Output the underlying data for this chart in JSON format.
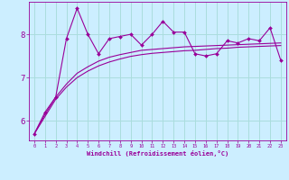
{
  "background_color": "#cceeff",
  "grid_color": "#aadddd",
  "line_color": "#990099",
  "marker_color": "#990099",
  "xlabel": "Windchill (Refroidissement éolien,°C)",
  "xlabel_color": "#990099",
  "tick_color": "#990099",
  "ylabel_ticks": [
    6,
    7,
    8
  ],
  "xticks": [
    0,
    1,
    2,
    3,
    4,
    5,
    6,
    7,
    8,
    9,
    10,
    11,
    12,
    13,
    14,
    15,
    16,
    17,
    18,
    19,
    20,
    21,
    22,
    23
  ],
  "xlim": [
    -0.5,
    23.5
  ],
  "ylim": [
    5.55,
    8.75
  ],
  "series1_x": [
    0,
    1,
    2,
    3,
    4,
    5,
    6,
    7,
    8,
    9,
    10,
    11,
    12,
    13,
    14,
    15,
    16,
    17,
    18,
    19,
    20,
    21,
    22,
    23
  ],
  "series1_y": [
    5.7,
    6.2,
    6.55,
    7.9,
    8.6,
    8.0,
    7.55,
    7.9,
    7.95,
    8.0,
    7.75,
    8.0,
    8.3,
    8.05,
    8.05,
    7.55,
    7.5,
    7.55,
    7.85,
    7.8,
    7.9,
    7.85,
    8.15,
    7.4
  ],
  "series2_x": [
    0,
    1,
    2,
    3,
    4,
    5,
    6,
    7,
    8,
    9,
    10,
    11,
    12,
    13,
    14,
    15,
    16,
    17,
    18,
    19,
    20,
    21,
    22,
    23
  ],
  "series2_y": [
    5.7,
    6.15,
    6.55,
    6.85,
    7.1,
    7.25,
    7.38,
    7.47,
    7.53,
    7.58,
    7.63,
    7.65,
    7.67,
    7.69,
    7.71,
    7.72,
    7.73,
    7.74,
    7.75,
    7.76,
    7.77,
    7.78,
    7.79,
    7.8
  ],
  "series3_x": [
    0,
    1,
    2,
    3,
    4,
    5,
    6,
    7,
    8,
    9,
    10,
    11,
    12,
    13,
    14,
    15,
    16,
    17,
    18,
    19,
    20,
    21,
    22,
    23
  ],
  "series3_y": [
    5.7,
    6.1,
    6.5,
    6.78,
    7.0,
    7.15,
    7.27,
    7.36,
    7.43,
    7.49,
    7.53,
    7.56,
    7.58,
    7.6,
    7.62,
    7.63,
    7.65,
    7.67,
    7.68,
    7.7,
    7.71,
    7.72,
    7.73,
    7.74
  ]
}
